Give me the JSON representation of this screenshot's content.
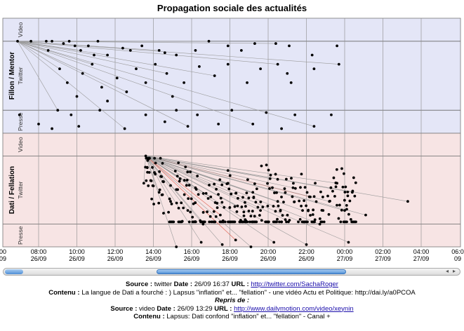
{
  "chart_data": {
    "type": "scatter",
    "title": "Propagation sociale des actualités",
    "x_ticks": [
      {
        "time": "00",
        "date": "09"
      },
      {
        "time": "08:00",
        "date": "26/09"
      },
      {
        "time": "10:00",
        "date": "26/09"
      },
      {
        "time": "12:00",
        "date": "26/09"
      },
      {
        "time": "14:00",
        "date": "26/09"
      },
      {
        "time": "16:00",
        "date": "26/09"
      },
      {
        "time": "18:00",
        "date": "26/09"
      },
      {
        "time": "20:00",
        "date": "26/09"
      },
      {
        "time": "22:00",
        "date": "26/09"
      },
      {
        "time": "00:00",
        "date": "27/09"
      },
      {
        "time": "02:00",
        "date": "27/09"
      },
      {
        "time": "04:00",
        "date": "27/09"
      },
      {
        "time": "06:0",
        "date": "09"
      }
    ],
    "groups": [
      {
        "name": "Fillon / Mentor",
        "color": "#e4e6f7",
        "rows": [
          "Video",
          "Twitter",
          "Presse"
        ]
      },
      {
        "name": "Dati / Fellation",
        "color": "#f7e4e4",
        "rows": [
          "Video",
          "Twitter",
          "Presse"
        ]
      }
    ],
    "series": [
      {
        "name": "Fillon / Mentor",
        "points": [
          [
            6.9,
            1
          ],
          [
            7.6,
            1
          ],
          [
            8.4,
            1
          ],
          [
            8.5,
            1.2
          ],
          [
            8.7,
            1
          ],
          [
            9.3,
            1.05
          ],
          [
            9.6,
            1
          ],
          [
            9.9,
            1.1
          ],
          [
            10.2,
            1.2
          ],
          [
            10.6,
            1.1
          ],
          [
            10.9,
            1.3
          ],
          [
            11.1,
            1
          ],
          [
            11.6,
            1.3
          ],
          [
            12.4,
            1.15
          ],
          [
            12.8,
            1.2
          ],
          [
            13.4,
            1.1
          ],
          [
            14.3,
            1.2
          ],
          [
            14.6,
            1.25
          ],
          [
            15.2,
            1.3
          ],
          [
            16.2,
            1.2
          ],
          [
            16.9,
            1
          ],
          [
            17.9,
            1.1
          ],
          [
            18.6,
            1.2
          ],
          [
            19.3,
            1.05
          ],
          [
            20.4,
            1.05
          ],
          [
            21.1,
            1.1
          ],
          [
            22.3,
            1.3
          ],
          [
            23.6,
            1.1
          ],
          [
            9.1,
            1.6
          ],
          [
            9.5,
            1.9
          ],
          [
            10.0,
            2.2
          ],
          [
            10.3,
            1.7
          ],
          [
            10.8,
            1.5
          ],
          [
            11.3,
            2.0
          ],
          [
            11.6,
            2.3
          ],
          [
            12.1,
            1.8
          ],
          [
            12.6,
            2.1
          ],
          [
            13.1,
            1.6
          ],
          [
            13.6,
            1.9
          ],
          [
            14.1,
            1.5
          ],
          [
            14.7,
            1.7
          ],
          [
            15.0,
            2.2
          ],
          [
            15.6,
            1.9
          ],
          [
            16.4,
            1.55
          ],
          [
            17.2,
            1.75
          ],
          [
            17.9,
            1.5
          ],
          [
            18.9,
            1.9
          ],
          [
            19.6,
            1.6
          ],
          [
            20.5,
            1.5
          ],
          [
            21.0,
            1.7
          ],
          [
            21.2,
            1.9
          ],
          [
            22.4,
            1.6
          ],
          [
            23.7,
            1.5
          ],
          [
            7.0,
            2.6
          ],
          [
            8.0,
            2.8
          ],
          [
            8.7,
            2.9
          ],
          [
            9.0,
            2.5
          ],
          [
            9.7,
            2.6
          ],
          [
            10.1,
            2.85
          ],
          [
            11.2,
            2.5
          ],
          [
            12.5,
            2.9
          ],
          [
            13.6,
            2.6
          ],
          [
            14.6,
            2.75
          ],
          [
            15.2,
            2.5
          ],
          [
            15.8,
            2.85
          ],
          [
            16.3,
            2.6
          ],
          [
            17.4,
            2.8
          ],
          [
            18.1,
            2.5
          ],
          [
            19.2,
            2.8
          ],
          [
            19.9,
            2.55
          ],
          [
            20.7,
            2.9
          ],
          [
            21.4,
            2.6
          ],
          [
            22.4,
            2.85
          ],
          [
            23.3,
            2.6
          ]
        ]
      },
      {
        "name": "Dati / Fellation",
        "points": [
          [
            13.6,
            1.0
          ],
          [
            13.7,
            1.1
          ],
          [
            14.1,
            1.4
          ],
          [
            13.5,
            1.6
          ],
          [
            14.3,
            1.8
          ],
          [
            14.9,
            2.0
          ],
          [
            15.4,
            1.5
          ],
          [
            15.8,
            2.2
          ],
          [
            16.2,
            1.7
          ],
          [
            16.6,
            2.5
          ],
          [
            17.0,
            1.9
          ],
          [
            17.5,
            2.3
          ],
          [
            17.9,
            1.6
          ],
          [
            18.4,
            2.1
          ],
          [
            18.8,
            2.4
          ],
          [
            19.2,
            1.8
          ],
          [
            19.6,
            2.2
          ],
          [
            20.1,
            1.5
          ],
          [
            20.5,
            2.0
          ],
          [
            20.9,
            2.4
          ],
          [
            21.3,
            1.7
          ],
          [
            21.8,
            2.2
          ],
          [
            22.2,
            1.9
          ],
          [
            22.7,
            2.5
          ],
          [
            23.2,
            2.0
          ],
          [
            23.6,
            1.6
          ],
          [
            24.0,
            2.2
          ],
          [
            24.4,
            1.8
          ],
          [
            25.1,
            2.3
          ],
          [
            27.3,
            2.0
          ],
          [
            15.2,
            3.0
          ],
          [
            16.5,
            2.9
          ],
          [
            17.6,
            2.95
          ],
          [
            18.3,
            2.85
          ],
          [
            19.1,
            3.0
          ],
          [
            20.3,
            2.9
          ],
          [
            22.0,
            2.95
          ],
          [
            24.2,
            2.9
          ]
        ]
      }
    ],
    "xlabel": "",
    "ylabel": "",
    "grid": true
  },
  "scrollbar": {
    "left_arrow": "◂",
    "right_arrow": "▸"
  },
  "info": {
    "line1": {
      "label_source": "Source :",
      "source": "twitter",
      "label_date": "Date :",
      "date": "26/09 16:37",
      "label_url": "URL :",
      "url": "http://twitter.com/SachaRoger"
    },
    "line2": {
      "label_contenu": "Contenu :",
      "contenu": "La langue de Dati a fourché : ) Lapsus \"inflation\" et... \"fellation\" - une vidéo Actu et Politique: http://dai.ly/a0PCOA"
    },
    "line3": {
      "label": "Repris de :"
    },
    "line4": {
      "label_source": "Source :",
      "source": "video",
      "label_date": "Date :",
      "date": "26/09 13:29",
      "label_url": "URL :",
      "url": "http://www.dailymotion.com/video/xeynin"
    },
    "line5": {
      "label_contenu": "Contenu :",
      "contenu": "Lapsus: Dati confond \"inflation\" et... \"fellation\" - Canal +"
    }
  }
}
